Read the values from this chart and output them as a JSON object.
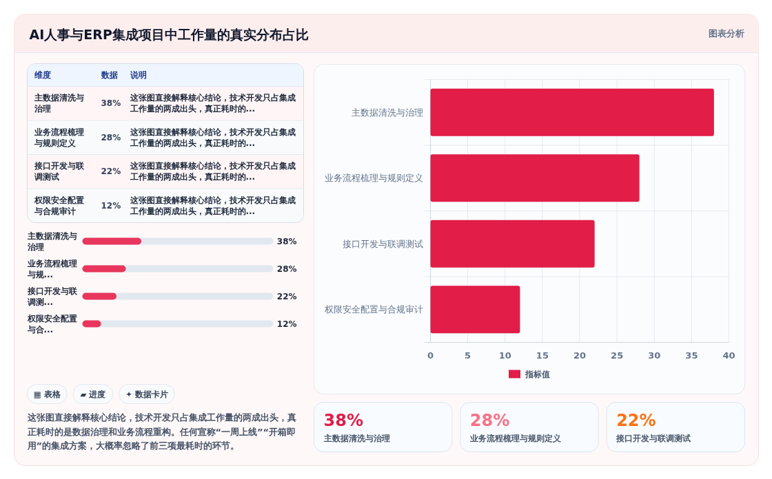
{
  "chart_data": [
    {
      "type": "other",
      "title": "AI人事与ERP集成项目中工作量的真实分布占比",
      "annotations": [
        "图表分析"
      ]
    },
    {
      "type": "other",
      "categories": [
        "主数据清洗与治理",
        "业务流程梳理与规则定义",
        "接口开发与联调测试",
        "权限安全配置与合规审计"
      ],
      "values": [
        38,
        28,
        22,
        12
      ],
      "value_labels": [
        "38%",
        "28%",
        "22%",
        "12%"
      ],
      "annotations": [
        "维度",
        "数据",
        "说明",
        "这张图直接解释核心结论，技术开发只占集成工作量的两成出头，真正耗时的...",
        "这张图直接解释核心结论，技术开发只占集成工作量的两成出头，真正耗时的...",
        "这张图直接解释核心结论，技术开发只占集成工作量的两成出头，真正耗时的...",
        "这张图直接解释核心结论，技术开发只占集成工作量的两成出头，真正耗时的..."
      ]
    },
    {
      "type": "bar",
      "orientation": "horizontal",
      "categories": [
        "主数据清洗与治理",
        "业务流程梳理与规...",
        "接口开发与联调测...",
        "权限安全配置与合..."
      ],
      "values": [
        38,
        28,
        22,
        12
      ],
      "value_labels": [
        "38%",
        "28%",
        "22%",
        "12%"
      ],
      "color": "#e8365d",
      "xlim": [
        0,
        123
      ],
      "tick_labels": "y"
    },
    {
      "type": "other",
      "annotations": [
        "▦ 表格",
        "▰ 进度",
        "✦ 数据卡片",
        "这张图直接解释核心结论，技术开发只占集成工作量的两成出头，真正耗时的是数据治理和业务流程重构。任何宣称“一周上线”“开箱即用”的集成方案，大概率忽略了前三项最耗时的环节。"
      ]
    },
    {
      "type": "bar",
      "orientation": "horizontal",
      "categories": [
        "主数据清洗与治理",
        "业务流程梳理与规则定义",
        "接口开发与联调测试",
        "权限安全配置与合规审计"
      ],
      "series": [
        {
          "name": "指标值",
          "color": "#e11d48",
          "values": [
            38,
            28,
            22,
            12
          ]
        }
      ],
      "xlim": [
        0,
        40
      ],
      "xticks": [
        0,
        5,
        10,
        15,
        20,
        25,
        30,
        35,
        40
      ],
      "grid": true,
      "legend": "bottom"
    },
    {
      "type": "other",
      "categories": [
        "主数据清洗与治理",
        "业务流程梳理与规则定义",
        "接口开发与联调测试"
      ],
      "values": [
        38,
        28,
        22
      ],
      "value_labels": [
        "38%",
        "28%",
        "22%"
      ]
    }
  ]
}
